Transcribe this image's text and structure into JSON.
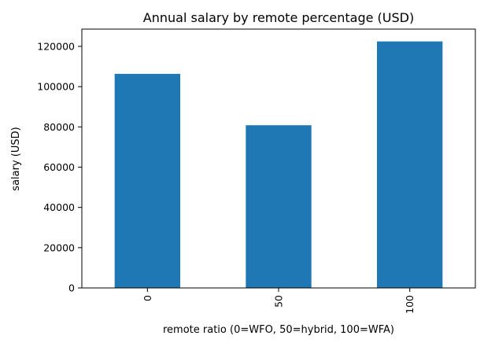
{
  "chart_data": {
    "type": "bar",
    "title": "Annual salary by remote percentage (USD)",
    "xlabel": "remote ratio (0=WFO, 50=hybrid, 100=WFA)",
    "ylabel": "salary (USD)",
    "categories": [
      "0",
      "50",
      "100"
    ],
    "values": [
      106354,
      80823,
      122457
    ],
    "ylim": [
      0,
      128575
    ],
    "yticks": [
      0,
      20000,
      40000,
      60000,
      80000,
      100000,
      120000
    ],
    "ytick_labels": [
      "0",
      "20000",
      "40000",
      "60000",
      "80000",
      "100000",
      "120000"
    ],
    "xtick_rotation": 90,
    "bar_color": "#1f77b4",
    "grid": false,
    "legend": "none"
  }
}
